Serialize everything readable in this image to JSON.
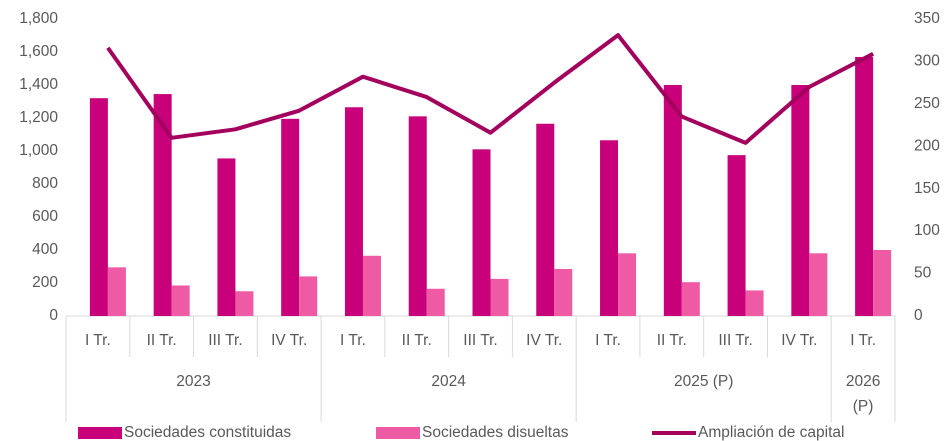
{
  "chart_data": {
    "type": "bar",
    "groups": [
      {
        "label": "2023",
        "categories": [
          "I Tr.",
          "II Tr.",
          "III Tr.",
          "IV Tr."
        ]
      },
      {
        "label": "2024",
        "categories": [
          "I Tr.",
          "II Tr.",
          "III Tr.",
          "IV Tr."
        ]
      },
      {
        "label": "2025 (P)",
        "categories": [
          "I Tr.",
          "II Tr.",
          "III Tr.",
          "IV Tr."
        ]
      },
      {
        "label": "2026 (P)",
        "categories": [
          "I Tr."
        ]
      }
    ],
    "series": [
      {
        "name": "Sociedades constituidas",
        "type": "bar",
        "color": "#c8007a",
        "values": [
          1320,
          1345,
          955,
          1195,
          1265,
          1210,
          1010,
          1165,
          1065,
          1400,
          975,
          1400,
          1570
        ]
      },
      {
        "name": "Sociedades disueltas",
        "type": "bar",
        "color": "#ef5aa4",
        "values": [
          295,
          185,
          150,
          240,
          365,
          165,
          225,
          285,
          380,
          205,
          155,
          380,
          400
        ]
      },
      {
        "name": "Ampliación de capital",
        "type": "line",
        "color": "#a3005e",
        "axis": "y2",
        "values": [
          316,
          210,
          220,
          242,
          282,
          258,
          216,
          275,
          331,
          235,
          204,
          270,
          309
        ]
      }
    ],
    "ylim": [
      0,
      1800
    ],
    "yticks": [
      0,
      200,
      400,
      600,
      800,
      {
        "value": 1000,
        "label": "1,000"
      },
      {
        "value": 1200,
        "label": "1,200"
      },
      {
        "value": 1400,
        "label": "1,400"
      },
      {
        "value": 1600,
        "label": "1,600"
      },
      {
        "value": 1800,
        "label": "1,800"
      }
    ],
    "y2lim": [
      0,
      350
    ],
    "y2ticks": [
      0,
      50,
      100,
      150,
      200,
      250,
      300,
      350
    ],
    "legend": "bottom"
  }
}
